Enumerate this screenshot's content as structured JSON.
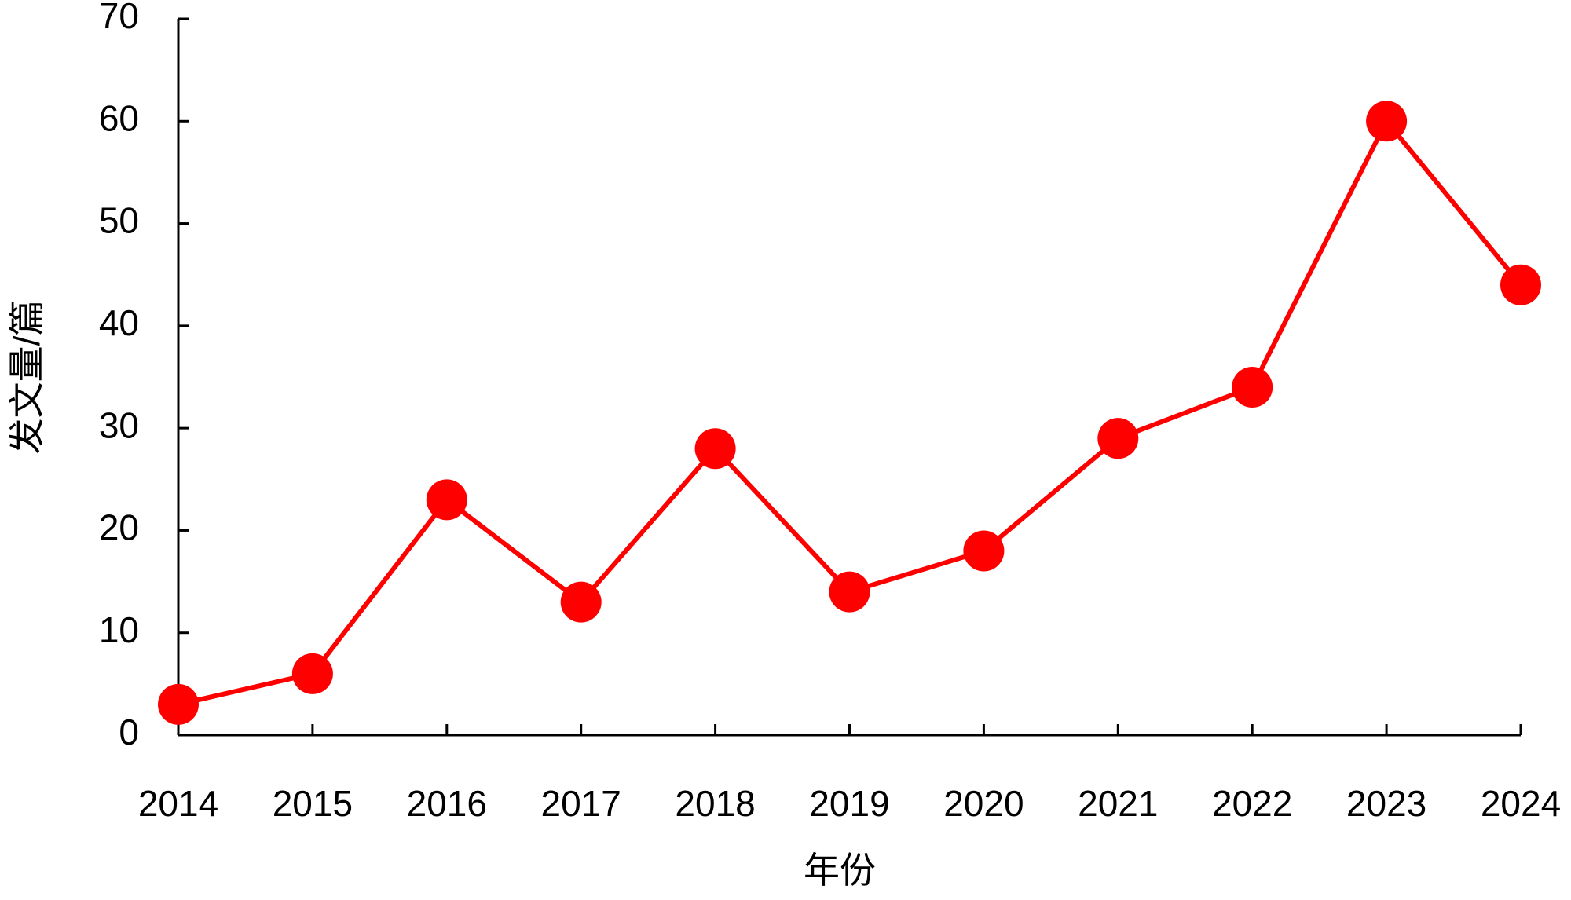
{
  "chart_data": {
    "type": "line",
    "x": [
      2014,
      2015,
      2016,
      2017,
      2018,
      2019,
      2020,
      2021,
      2022,
      2023,
      2024
    ],
    "series": [
      {
        "color": "#ff0000",
        "values": [
          3,
          6,
          23,
          13,
          28,
          14,
          18,
          29,
          34,
          60,
          44
        ]
      }
    ],
    "xlim": [
      2014,
      2024
    ],
    "xticks": [
      2014,
      2015,
      2016,
      2017,
      2018,
      2019,
      2020,
      2021,
      2022,
      2023,
      2024
    ],
    "ylim": [
      0,
      70
    ],
    "yticks": [
      0,
      10,
      20,
      30,
      40,
      50,
      60,
      70
    ],
    "x_label": "年份",
    "y_label": "发文量/篇",
    "grid": false
  }
}
